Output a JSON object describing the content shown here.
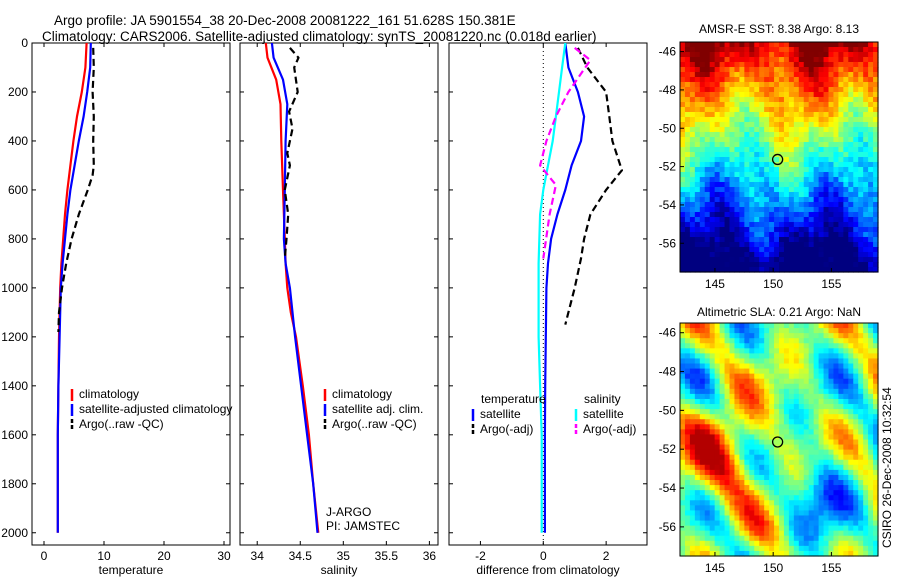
{
  "title_line1": "Argo profile: JA 5901554_38 20-Dec-2008 20081222_161 51.628S 150.381E",
  "title_line2": "Climatology: CARS2006. Satellite-adjusted climatology: synTS_20081220.nc (0.018d earlier)",
  "side_label": "CSIRO 26-Dec-2008 10:32:54",
  "colors": {
    "climatology": "#ff0000",
    "satellite": "#0000ff",
    "argo": "#000000",
    "salinity_sat": "#00ffff",
    "salinity_argo": "#ff00ff"
  },
  "chart_data": [
    {
      "type": "line",
      "xlabel": "temperature",
      "ylabel": "",
      "xlim": [
        -2,
        31
      ],
      "ylim": [
        2050,
        0
      ],
      "y_reversed": true,
      "xticks": [
        0,
        10,
        20,
        30
      ],
      "yticks": [
        0,
        200,
        400,
        600,
        800,
        1000,
        1200,
        1400,
        1600,
        1800,
        2000
      ],
      "grid": false,
      "legend_position": "bottom-right",
      "series": [
        {
          "name": "climatology",
          "color": "#ff0000",
          "style": "solid",
          "x": [
            7.1,
            6.9,
            6.3,
            5.5,
            4.9,
            4.4,
            3.9,
            3.5,
            3.2,
            2.9,
            2.7,
            2.5,
            2.4,
            2.3,
            2.3
          ],
          "y": [
            0,
            100,
            200,
            300,
            400,
            500,
            600,
            700,
            800,
            900,
            1000,
            1200,
            1400,
            1600,
            2000
          ]
        },
        {
          "name": "satellite-adjusted climatology",
          "color": "#0000ff",
          "style": "solid",
          "x": [
            7.8,
            7.7,
            7.2,
            6.6,
            5.8,
            5.1,
            4.4,
            3.9,
            3.5,
            3.1,
            2.8,
            2.6,
            2.4,
            2.3,
            2.3
          ],
          "y": [
            0,
            100,
            200,
            300,
            400,
            500,
            600,
            700,
            800,
            900,
            1000,
            1200,
            1400,
            1600,
            2000
          ]
        },
        {
          "name": "Argo(..raw -QC)",
          "color": "#000000",
          "style": "dashed",
          "x": [
            8.2,
            8.3,
            8.1,
            8.3,
            8.2,
            8.3,
            8.1,
            7.3,
            5.8,
            4.6,
            3.7,
            3.0,
            2.5,
            2.4
          ],
          "y": [
            20,
            100,
            200,
            300,
            400,
            500,
            540,
            600,
            700,
            800,
            900,
            1000,
            1100,
            1180
          ]
        }
      ],
      "legend": [
        "climatology",
        "satellite-adjusted climatology",
        "Argo(..raw -QC)"
      ]
    },
    {
      "type": "line",
      "xlabel": "salinity",
      "ylabel": "",
      "xlim": [
        33.8,
        36.1
      ],
      "ylim": [
        2050,
        0
      ],
      "y_reversed": true,
      "xticks": [
        34,
        34.5,
        35,
        35.5,
        36
      ],
      "grid": false,
      "legend_position": "bottom-right",
      "annotations": [
        "J-ARGO",
        "PI: JAMSTEC"
      ],
      "series": [
        {
          "name": "climatology",
          "color": "#ff0000",
          "style": "solid",
          "x": [
            34.1,
            34.12,
            34.22,
            34.27,
            34.28,
            34.3,
            34.32,
            34.33,
            34.35,
            34.39,
            34.45,
            34.53,
            34.6,
            34.65,
            34.71
          ],
          "y": [
            0,
            60,
            150,
            250,
            400,
            600,
            800,
            900,
            1000,
            1100,
            1200,
            1400,
            1600,
            1800,
            2000
          ]
        },
        {
          "name": "satellite adj. clim.",
          "color": "#0000ff",
          "style": "solid",
          "x": [
            34.17,
            34.19,
            34.3,
            34.35,
            34.33,
            34.32,
            34.31,
            34.33,
            34.38,
            34.44,
            34.51,
            34.58,
            34.65,
            34.7
          ],
          "y": [
            0,
            60,
            150,
            250,
            400,
            600,
            800,
            900,
            1000,
            1200,
            1400,
            1600,
            1800,
            2000
          ]
        },
        {
          "name": "Argo(..raw -QC)",
          "color": "#000000",
          "style": "dashed",
          "x": [
            34.38,
            34.48,
            34.43,
            34.47,
            34.37,
            34.41,
            34.35,
            34.38,
            34.32,
            34.36,
            34.34,
            34.32
          ],
          "y": [
            20,
            60,
            100,
            200,
            280,
            350,
            450,
            500,
            600,
            700,
            800,
            880
          ]
        }
      ],
      "legend": [
        "climatology",
        "satellite adj. clim.",
        "Argo(..raw -QC)"
      ]
    },
    {
      "type": "line",
      "xlabel": "difference from climatology",
      "ylabel": "",
      "xlim": [
        -3,
        3.3
      ],
      "ylim": [
        2050,
        0
      ],
      "y_reversed": true,
      "xticks": [
        -2,
        0,
        2
      ],
      "grid": false,
      "legend_position": "bottom",
      "legend_groups": [
        {
          "title": "temperature",
          "entries": [
            "satellite",
            "Argo(-adj)"
          ]
        },
        {
          "title": "salinity",
          "entries": [
            "satellite",
            "Argo(-adj)"
          ]
        }
      ],
      "series": [
        {
          "name": "temperature satellite",
          "color": "#0000ff",
          "style": "solid",
          "x": [
            0.7,
            0.8,
            1.1,
            1.3,
            1.2,
            0.9,
            0.7,
            0.45,
            0.25,
            0.15,
            0.1,
            0.08,
            0.06,
            0.05,
            0.05
          ],
          "y": [
            0,
            100,
            200,
            300,
            400,
            500,
            600,
            700,
            800,
            900,
            1000,
            1200,
            1400,
            1600,
            2000
          ]
        },
        {
          "name": "temperature Argo(-adj)",
          "color": "#000000",
          "style": "dashed",
          "x": [
            1.1,
            1.4,
            2.0,
            2.1,
            2.2,
            2.5,
            2.0,
            1.5,
            1.3,
            1.2,
            1.0,
            0.8,
            0.7
          ],
          "y": [
            20,
            100,
            200,
            300,
            400,
            520,
            600,
            700,
            800,
            880,
            1000,
            1100,
            1150
          ]
        },
        {
          "name": "salinity satellite",
          "color": "#00ffff",
          "style": "solid",
          "x": [
            0.7,
            0.6,
            0.5,
            0.4,
            0.3,
            0.15,
            0.0,
            -0.1,
            -0.15,
            -0.15,
            -0.1,
            -0.05,
            -0.05
          ],
          "y": [
            0,
            100,
            200,
            300,
            400,
            500,
            600,
            700,
            900,
            1200,
            1400,
            1600,
            2000
          ]
        },
        {
          "name": "salinity Argo(-adj)",
          "color": "#ff00ff",
          "style": "dashed",
          "x": [
            1.0,
            1.5,
            0.8,
            0.4,
            0.1,
            -0.1,
            0.4,
            0.2,
            0.0
          ],
          "y": [
            20,
            70,
            200,
            300,
            400,
            500,
            580,
            700,
            880
          ]
        }
      ]
    },
    {
      "type": "heatmap",
      "title": "AMSR-E SST: 8.38 Argo: 8.13",
      "xticks": [
        145,
        150,
        155
      ],
      "yticks": [
        -46,
        -48,
        -50,
        -52,
        -54,
        -56
      ],
      "xlim": [
        142,
        159
      ],
      "ylim": [
        -57.5,
        -45.5
      ],
      "marker": {
        "lon": 150.381,
        "lat": -51.628
      }
    },
    {
      "type": "heatmap",
      "title": "Altimetric SLA: 0.21 Argo: NaN",
      "xticks": [
        145,
        150,
        155
      ],
      "yticks": [
        -46,
        -48,
        -50,
        -52,
        -54,
        -56
      ],
      "xlim": [
        142,
        159
      ],
      "ylim": [
        -57.5,
        -45.5
      ],
      "marker": {
        "lon": 150.381,
        "lat": -51.628
      }
    }
  ]
}
